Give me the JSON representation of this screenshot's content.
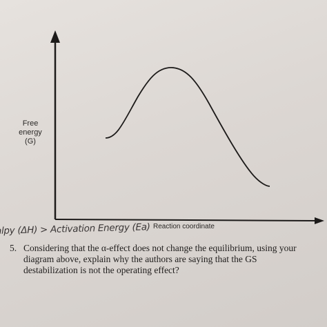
{
  "diagram": {
    "y_axis_label_lines": [
      "Free",
      "energy",
      "(G)"
    ],
    "x_axis_label": "Reaction coordinate"
  },
  "handwritten_note": "alpy (ΔH) > Activation Energy (Ea)",
  "question": {
    "number": "5.",
    "lines": [
      "Considering that the α-effect does not change the equilibrium, using your",
      "diagram above, explain why the authors are saying that the GS",
      "destabilization is not the operating effect?"
    ]
  },
  "colors": {
    "paper": "#e2ddd9",
    "ink": "#1f1d1c"
  }
}
